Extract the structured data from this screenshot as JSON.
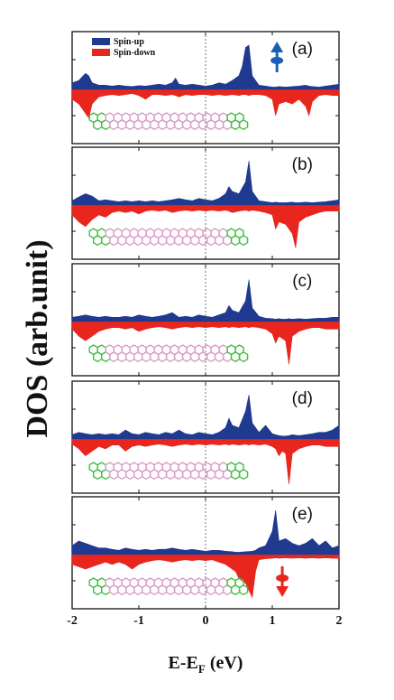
{
  "chart_data": {
    "type": "area",
    "xlabel": "E-E_F (eV)",
    "xlabel_main": "E-E",
    "xlabel_sub": "F",
    "xlabel_unit": " (eV)",
    "ylabel": "DOS (arb.unit)",
    "xlim": [
      -2,
      2
    ],
    "xticks": [
      -2,
      -1,
      0,
      1,
      2
    ],
    "xtick_labels": [
      "-2",
      "-1",
      "0",
      "1",
      "2"
    ],
    "fermi_line": 0,
    "legend": {
      "placement": "top-left of panel (a)",
      "entries": [
        {
          "name": "Spin-up",
          "color": "#1f3a8f"
        },
        {
          "name": "Spin-down",
          "color": "#e8261e"
        }
      ]
    },
    "colors": {
      "spin_up": "#1f3a8f",
      "spin_down": "#e8261e",
      "molecule_green": "#3fbf3f",
      "molecule_pink": "#d99cc7",
      "arrow_up": "#1a5fb4",
      "arrow_down": "#e8261e"
    },
    "panels": [
      {
        "label": "(a)",
        "spin_arrow": "up",
        "x": [
          -2.0,
          -1.9,
          -1.8,
          -1.75,
          -1.7,
          -1.6,
          -1.5,
          -1.4,
          -1.3,
          -1.2,
          -1.1,
          -1.0,
          -0.9,
          -0.8,
          -0.7,
          -0.6,
          -0.5,
          -0.45,
          -0.4,
          -0.3,
          -0.2,
          -0.1,
          0.0,
          0.1,
          0.2,
          0.3,
          0.4,
          0.5,
          0.55,
          0.6,
          0.65,
          0.7,
          0.8,
          0.9,
          1.0,
          1.05,
          1.1,
          1.2,
          1.3,
          1.4,
          1.5,
          1.55,
          1.6,
          1.7,
          1.8,
          1.9,
          2.0
        ],
        "spin_up": [
          0.15,
          0.2,
          0.35,
          0.3,
          0.15,
          0.1,
          0.1,
          0.08,
          0.1,
          0.08,
          0.07,
          0.09,
          0.08,
          0.1,
          0.12,
          0.1,
          0.15,
          0.25,
          0.12,
          0.1,
          0.12,
          0.1,
          0.08,
          0.1,
          0.15,
          0.12,
          0.2,
          0.3,
          0.5,
          0.9,
          0.95,
          0.3,
          0.1,
          0.08,
          0.06,
          0.06,
          0.07,
          0.06,
          0.07,
          0.08,
          0.1,
          0.08,
          0.07,
          0.06,
          0.08,
          0.1,
          0.12
        ],
        "spin_down": [
          0.2,
          0.3,
          0.5,
          0.6,
          0.3,
          0.15,
          0.12,
          0.1,
          0.12,
          0.1,
          0.08,
          0.12,
          0.2,
          0.1,
          0.1,
          0.12,
          0.1,
          0.12,
          0.15,
          0.1,
          0.12,
          0.1,
          0.1,
          0.12,
          0.1,
          0.12,
          0.1,
          0.12,
          0.1,
          0.1,
          0.12,
          0.1,
          0.1,
          0.12,
          0.2,
          0.55,
          0.3,
          0.25,
          0.3,
          0.2,
          0.35,
          0.55,
          0.25,
          0.12,
          0.1,
          0.12,
          0.12
        ]
      },
      {
        "label": "(b)",
        "spin_arrow": "none",
        "x": [
          -2.0,
          -1.9,
          -1.8,
          -1.7,
          -1.6,
          -1.5,
          -1.4,
          -1.3,
          -1.2,
          -1.1,
          -1.0,
          -0.9,
          -0.8,
          -0.7,
          -0.6,
          -0.5,
          -0.4,
          -0.3,
          -0.2,
          -0.1,
          0.0,
          0.1,
          0.2,
          0.3,
          0.35,
          0.4,
          0.5,
          0.6,
          0.65,
          0.7,
          0.8,
          0.9,
          1.0,
          1.05,
          1.1,
          1.2,
          1.3,
          1.35,
          1.4,
          1.5,
          1.6,
          1.7,
          1.8,
          1.9,
          2.0
        ],
        "spin_up": [
          0.1,
          0.18,
          0.25,
          0.2,
          0.1,
          0.12,
          0.1,
          0.08,
          0.1,
          0.08,
          0.1,
          0.08,
          0.1,
          0.08,
          0.1,
          0.12,
          0.15,
          0.12,
          0.1,
          0.15,
          0.12,
          0.1,
          0.15,
          0.25,
          0.4,
          0.3,
          0.25,
          0.5,
          0.95,
          0.3,
          0.1,
          0.08,
          0.06,
          0.07,
          0.06,
          0.06,
          0.07,
          0.06,
          0.06,
          0.07,
          0.06,
          0.07,
          0.08,
          0.1,
          0.12
        ],
        "spin_down": [
          0.2,
          0.35,
          0.45,
          0.3,
          0.2,
          0.25,
          0.15,
          0.12,
          0.15,
          0.12,
          0.18,
          0.12,
          0.1,
          0.12,
          0.1,
          0.15,
          0.12,
          0.1,
          0.12,
          0.1,
          0.12,
          0.1,
          0.12,
          0.1,
          0.12,
          0.15,
          0.12,
          0.1,
          0.12,
          0.1,
          0.12,
          0.15,
          0.2,
          0.5,
          0.35,
          0.4,
          0.6,
          0.9,
          0.35,
          0.25,
          0.2,
          0.15,
          0.12,
          0.12,
          0.12
        ]
      },
      {
        "label": "(c)",
        "spin_arrow": "none",
        "x": [
          -2.0,
          -1.9,
          -1.8,
          -1.7,
          -1.6,
          -1.5,
          -1.4,
          -1.3,
          -1.2,
          -1.1,
          -1.0,
          -0.9,
          -0.8,
          -0.7,
          -0.6,
          -0.5,
          -0.4,
          -0.3,
          -0.2,
          -0.1,
          0.0,
          0.1,
          0.2,
          0.3,
          0.35,
          0.4,
          0.5,
          0.6,
          0.65,
          0.7,
          0.8,
          0.9,
          1.0,
          1.05,
          1.1,
          1.15,
          1.2,
          1.25,
          1.3,
          1.4,
          1.5,
          1.6,
          1.7,
          1.8,
          1.9,
          2.0
        ],
        "spin_up": [
          0.1,
          0.12,
          0.15,
          0.12,
          0.1,
          0.12,
          0.1,
          0.1,
          0.12,
          0.1,
          0.15,
          0.12,
          0.1,
          0.12,
          0.15,
          0.2,
          0.1,
          0.12,
          0.1,
          0.15,
          0.12,
          0.1,
          0.15,
          0.2,
          0.35,
          0.25,
          0.2,
          0.45,
          0.9,
          0.3,
          0.12,
          0.08,
          0.07,
          0.06,
          0.07,
          0.06,
          0.06,
          0.07,
          0.06,
          0.07,
          0.06,
          0.07,
          0.08,
          0.08,
          0.1,
          0.1
        ],
        "spin_down": [
          0.15,
          0.3,
          0.4,
          0.3,
          0.2,
          0.15,
          0.12,
          0.12,
          0.15,
          0.12,
          0.2,
          0.15,
          0.12,
          0.1,
          0.12,
          0.15,
          0.12,
          0.1,
          0.12,
          0.1,
          0.12,
          0.1,
          0.12,
          0.1,
          0.12,
          0.1,
          0.12,
          0.1,
          0.12,
          0.1,
          0.12,
          0.15,
          0.25,
          0.45,
          0.3,
          0.35,
          0.4,
          0.9,
          0.3,
          0.2,
          0.15,
          0.12,
          0.12,
          0.15,
          0.15,
          0.15
        ]
      },
      {
        "label": "(d)",
        "spin_arrow": "none",
        "x": [
          -2.0,
          -1.9,
          -1.8,
          -1.7,
          -1.6,
          -1.5,
          -1.4,
          -1.3,
          -1.2,
          -1.1,
          -1.0,
          -0.9,
          -0.8,
          -0.7,
          -0.6,
          -0.5,
          -0.4,
          -0.3,
          -0.2,
          -0.1,
          0.0,
          0.1,
          0.2,
          0.3,
          0.35,
          0.4,
          0.5,
          0.6,
          0.65,
          0.7,
          0.8,
          0.9,
          1.0,
          1.05,
          1.1,
          1.15,
          1.2,
          1.25,
          1.3,
          1.4,
          1.5,
          1.6,
          1.7,
          1.8,
          1.9,
          2.0
        ],
        "spin_up": [
          0.1,
          0.15,
          0.12,
          0.1,
          0.12,
          0.1,
          0.12,
          0.1,
          0.2,
          0.12,
          0.1,
          0.15,
          0.12,
          0.1,
          0.15,
          0.12,
          0.2,
          0.12,
          0.1,
          0.15,
          0.12,
          0.1,
          0.15,
          0.25,
          0.45,
          0.3,
          0.25,
          0.6,
          0.95,
          0.35,
          0.15,
          0.3,
          0.12,
          0.1,
          0.08,
          0.07,
          0.07,
          0.08,
          0.1,
          0.08,
          0.1,
          0.12,
          0.15,
          0.15,
          0.2,
          0.3
        ],
        "spin_down": [
          0.1,
          0.2,
          0.35,
          0.25,
          0.15,
          0.2,
          0.12,
          0.12,
          0.25,
          0.15,
          0.12,
          0.15,
          0.12,
          0.1,
          0.12,
          0.15,
          0.12,
          0.1,
          0.12,
          0.1,
          0.12,
          0.1,
          0.12,
          0.1,
          0.12,
          0.1,
          0.12,
          0.1,
          0.12,
          0.1,
          0.12,
          0.1,
          0.15,
          0.2,
          0.35,
          0.25,
          0.3,
          0.95,
          0.3,
          0.2,
          0.15,
          0.12,
          0.12,
          0.15,
          0.15,
          0.15
        ]
      },
      {
        "label": "(e)",
        "spin_arrow": "down",
        "x": [
          -2.0,
          -1.9,
          -1.8,
          -1.7,
          -1.6,
          -1.5,
          -1.4,
          -1.3,
          -1.2,
          -1.1,
          -1.0,
          -0.9,
          -0.8,
          -0.7,
          -0.6,
          -0.5,
          -0.4,
          -0.3,
          -0.2,
          -0.1,
          0.0,
          0.1,
          0.2,
          0.3,
          0.4,
          0.45,
          0.5,
          0.6,
          0.7,
          0.75,
          0.8,
          0.9,
          1.0,
          1.05,
          1.1,
          1.2,
          1.3,
          1.4,
          1.5,
          1.6,
          1.7,
          1.8,
          1.9,
          2.0
        ],
        "spin_up": [
          0.2,
          0.3,
          0.25,
          0.2,
          0.15,
          0.15,
          0.12,
          0.1,
          0.15,
          0.12,
          0.1,
          0.12,
          0.1,
          0.12,
          0.12,
          0.15,
          0.12,
          0.1,
          0.12,
          0.1,
          0.08,
          0.1,
          0.1,
          0.08,
          0.07,
          0.06,
          0.06,
          0.07,
          0.08,
          0.1,
          0.15,
          0.2,
          0.5,
          0.95,
          0.3,
          0.35,
          0.25,
          0.2,
          0.25,
          0.35,
          0.2,
          0.3,
          0.15,
          0.2
        ],
        "spin_down": [
          0.2,
          0.25,
          0.3,
          0.25,
          0.2,
          0.15,
          0.2,
          0.15,
          0.2,
          0.3,
          0.2,
          0.15,
          0.12,
          0.1,
          0.12,
          0.15,
          0.12,
          0.1,
          0.12,
          0.1,
          0.12,
          0.1,
          0.15,
          0.2,
          0.3,
          0.35,
          0.5,
          0.6,
          0.9,
          0.35,
          0.1,
          0.08,
          0.07,
          0.06,
          0.07,
          0.06,
          0.07,
          0.06,
          0.07,
          0.06,
          0.07,
          0.06,
          0.07,
          0.07
        ]
      }
    ]
  }
}
